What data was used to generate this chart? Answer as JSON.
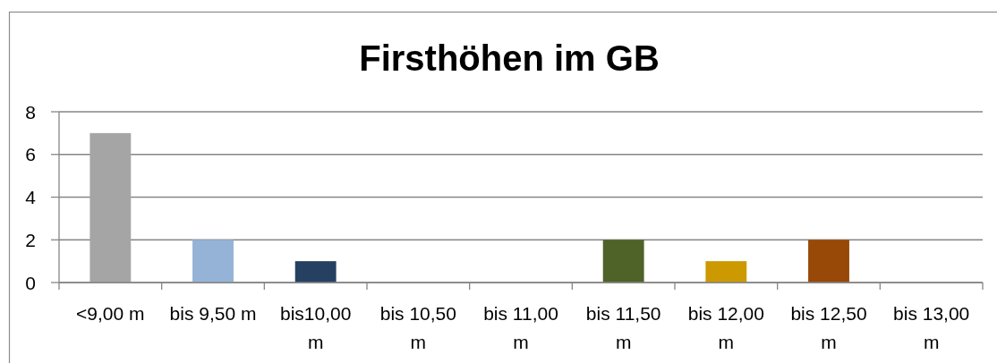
{
  "chart_data": {
    "type": "bar",
    "title": "Firsthöhen im GB",
    "categories": [
      "<9,00 m",
      "bis 9,50 m",
      "bis10,00 m",
      "bis 10,50 m",
      "bis 11,00 m",
      "bis 11,50 m",
      "bis 12,00 m",
      "bis 12,50 m",
      "bis 13,00 m"
    ],
    "values": [
      7,
      2,
      1,
      0,
      0,
      2,
      1,
      2,
      0
    ],
    "colors": [
      "#a5a5a5",
      "#95b3d7",
      "#254061",
      null,
      null,
      "#4f6228",
      "#cc9900",
      "#984807",
      null
    ],
    "ylim": [
      0,
      8
    ],
    "yticks": [
      0,
      2,
      4,
      6,
      8
    ],
    "grid": "y"
  }
}
